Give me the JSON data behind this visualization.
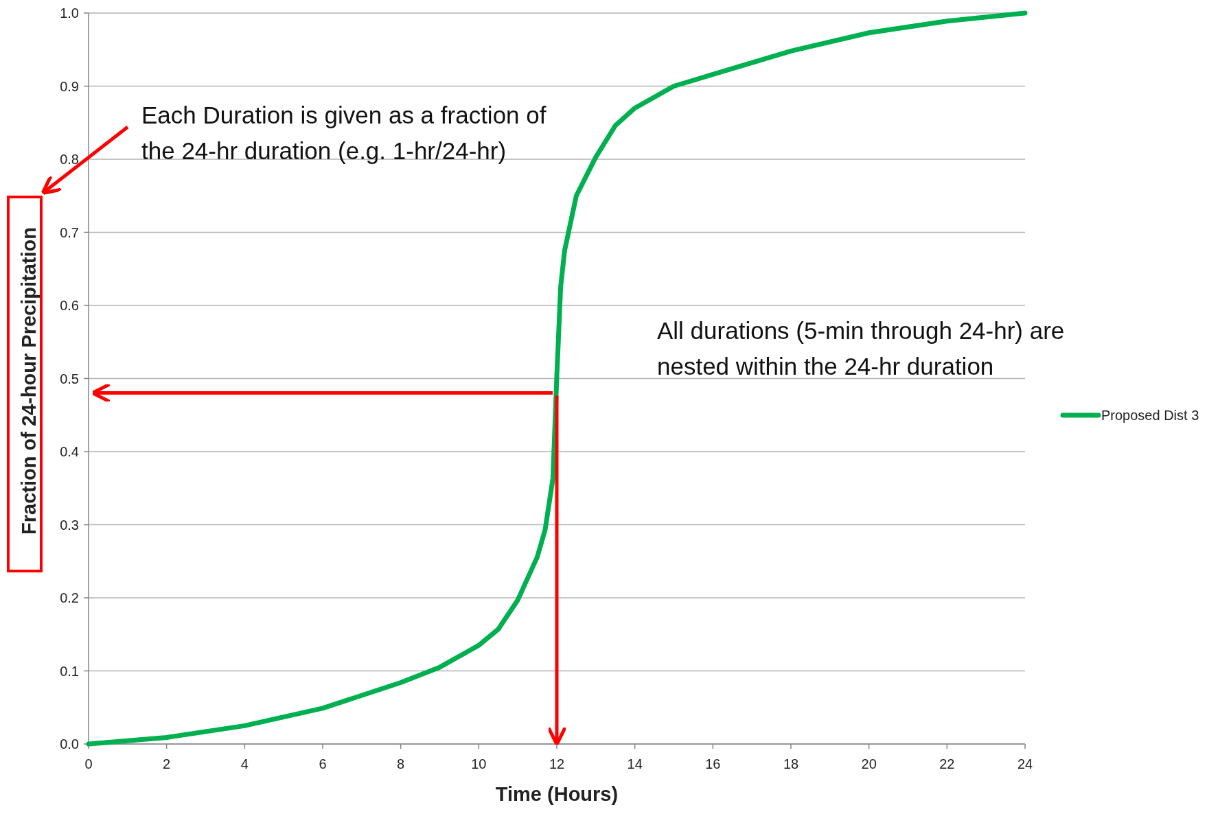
{
  "chart_data": {
    "type": "line",
    "xlabel": "Time (Hours)",
    "ylabel": "Fraction of 24-hour Precipitation",
    "xlim": [
      0,
      24
    ],
    "xticks": [
      0,
      2,
      4,
      6,
      8,
      10,
      12,
      14,
      16,
      18,
      20,
      22,
      24
    ],
    "ylim": [
      0,
      1
    ],
    "yticks": [
      {
        "value": 0,
        "label": "0.0"
      },
      0.1,
      0.2,
      0.3,
      0.4,
      0.5,
      0.6,
      0.7,
      0.8,
      0.9,
      {
        "value": 1,
        "label": "1.0"
      }
    ],
    "grid": "y",
    "legend": "right",
    "marker": "none",
    "line_style": "solid",
    "series": [
      {
        "name": "Proposed Dist 3",
        "color": "#00b050",
        "x": [
          0,
          2,
          4,
          6,
          8,
          9,
          10,
          10.5,
          11,
          11.5,
          11.7,
          11.9,
          12,
          12.1,
          12.2,
          12.5,
          13,
          13.5,
          14,
          15,
          16,
          18,
          20,
          22,
          24
        ],
        "values": [
          0,
          0.009,
          0.025,
          0.049,
          0.084,
          0.105,
          0.135,
          0.157,
          0.197,
          0.256,
          0.293,
          0.363,
          0.503,
          0.626,
          0.675,
          0.75,
          0.803,
          0.846,
          0.87,
          0.9,
          0.916,
          0.948,
          0.973,
          0.989,
          1.0
        ]
      }
    ],
    "annotations": [
      "Each Duration is given as a fraction of the 24-hr duration (e.g. 1-hr/24-hr)",
      "All durations (5-min through 24-hr) are nested within the 24-hr duration"
    ]
  }
}
